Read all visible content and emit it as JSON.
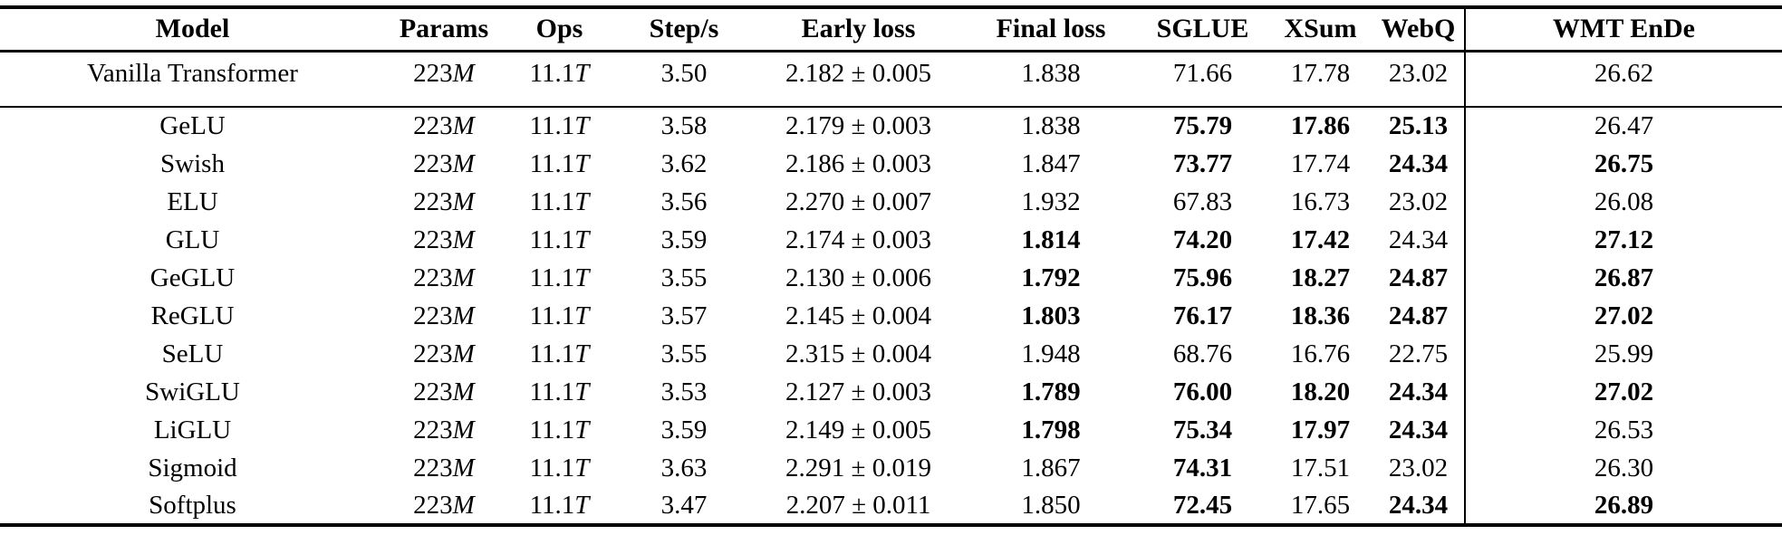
{
  "style": {
    "background": "#ffffff",
    "text_color": "#000000",
    "rule_color": "#000000"
  },
  "table": {
    "columns": [
      "Model",
      "Params",
      "Ops",
      "Step/s",
      "Early loss",
      "Final loss",
      "SGLUE",
      "XSum",
      "WebQ",
      "WMT EnDe"
    ],
    "baseline": {
      "values": [
        "Vanilla Transformer",
        "223M",
        "11.1T",
        "3.50",
        "2.182 ± 0.005",
        "1.838",
        "71.66",
        "17.78",
        "23.02",
        "26.62"
      ],
      "bold_cols": []
    },
    "rows": [
      {
        "values": [
          "GeLU",
          "223M",
          "11.1T",
          "3.58",
          "2.179 ± 0.003",
          "1.838",
          "75.79",
          "17.86",
          "25.13",
          "26.47"
        ],
        "bold_cols": [
          6,
          7,
          8
        ]
      },
      {
        "values": [
          "Swish",
          "223M",
          "11.1T",
          "3.62",
          "2.186 ± 0.003",
          "1.847",
          "73.77",
          "17.74",
          "24.34",
          "26.75"
        ],
        "bold_cols": [
          6,
          8,
          9
        ]
      },
      {
        "values": [
          "ELU",
          "223M",
          "11.1T",
          "3.56",
          "2.270 ± 0.007",
          "1.932",
          "67.83",
          "16.73",
          "23.02",
          "26.08"
        ],
        "bold_cols": []
      },
      {
        "values": [
          "GLU",
          "223M",
          "11.1T",
          "3.59",
          "2.174 ± 0.003",
          "1.814",
          "74.20",
          "17.42",
          "24.34",
          "27.12"
        ],
        "bold_cols": [
          5,
          6,
          7,
          9
        ]
      },
      {
        "values": [
          "GeGLU",
          "223M",
          "11.1T",
          "3.55",
          "2.130 ± 0.006",
          "1.792",
          "75.96",
          "18.27",
          "24.87",
          "26.87"
        ],
        "bold_cols": [
          5,
          6,
          7,
          8,
          9
        ]
      },
      {
        "values": [
          "ReGLU",
          "223M",
          "11.1T",
          "3.57",
          "2.145 ± 0.004",
          "1.803",
          "76.17",
          "18.36",
          "24.87",
          "27.02"
        ],
        "bold_cols": [
          5,
          6,
          7,
          8,
          9
        ]
      },
      {
        "values": [
          "SeLU",
          "223M",
          "11.1T",
          "3.55",
          "2.315 ± 0.004",
          "1.948",
          "68.76",
          "16.76",
          "22.75",
          "25.99"
        ],
        "bold_cols": []
      },
      {
        "values": [
          "SwiGLU",
          "223M",
          "11.1T",
          "3.53",
          "2.127 ± 0.003",
          "1.789",
          "76.00",
          "18.20",
          "24.34",
          "27.02"
        ],
        "bold_cols": [
          5,
          6,
          7,
          8,
          9
        ]
      },
      {
        "values": [
          "LiGLU",
          "223M",
          "11.1T",
          "3.59",
          "2.149 ± 0.005",
          "1.798",
          "75.34",
          "17.97",
          "24.34",
          "26.53"
        ],
        "bold_cols": [
          5,
          6,
          7,
          8
        ]
      },
      {
        "values": [
          "Sigmoid",
          "223M",
          "11.1T",
          "3.63",
          "2.291 ± 0.019",
          "1.867",
          "74.31",
          "17.51",
          "23.02",
          "26.30"
        ],
        "bold_cols": [
          6
        ]
      },
      {
        "values": [
          "Softplus",
          "223M",
          "11.1T",
          "3.47",
          "2.207 ± 0.011",
          "1.850",
          "72.45",
          "17.65",
          "24.34",
          "26.89"
        ],
        "bold_cols": [
          6,
          8,
          9
        ]
      }
    ]
  }
}
